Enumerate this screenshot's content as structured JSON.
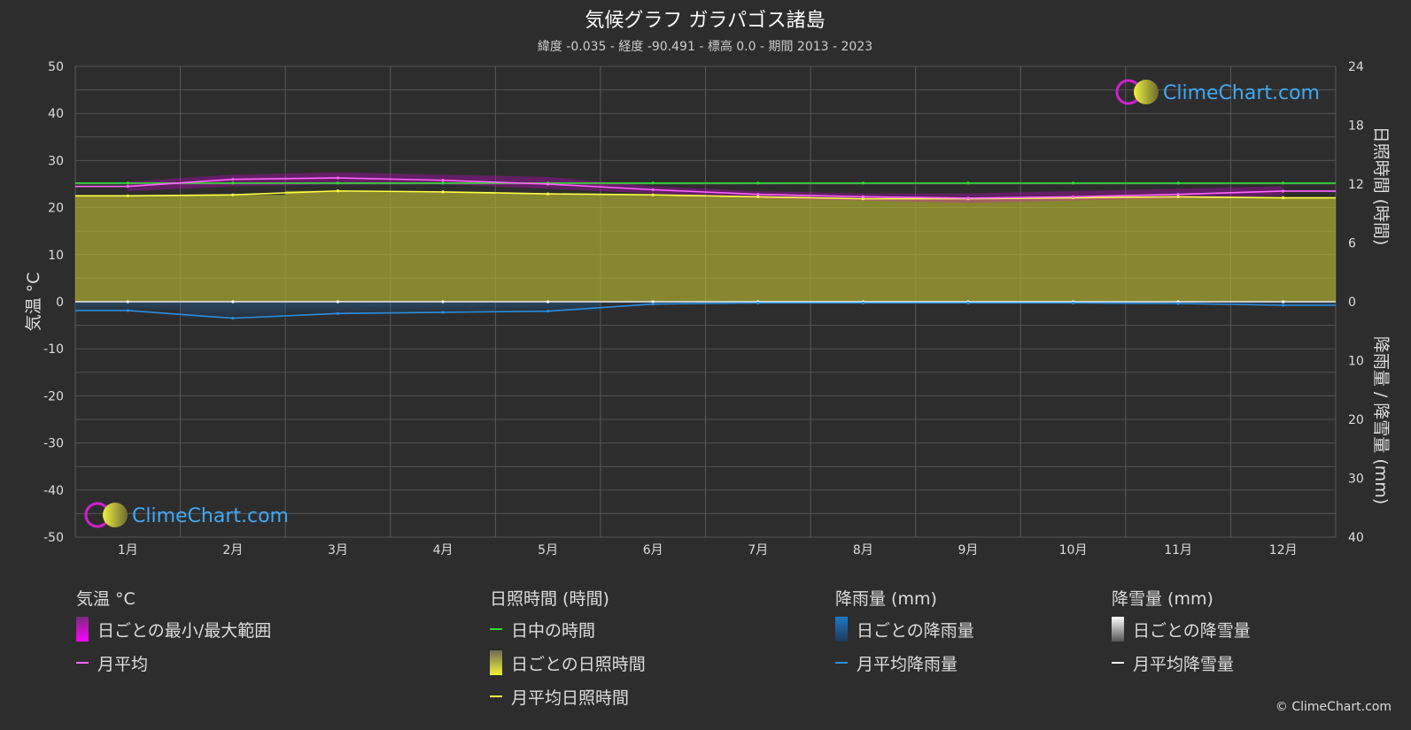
{
  "header": {
    "title": "気候グラフ ガラパゴス諸島",
    "subtitle": "緯度 -0.035 - 経度 -90.491 - 標高 0.0 - 期間 2013 - 2023"
  },
  "logo": {
    "text": "ClimeChart.com"
  },
  "copyright": "© ClimeChart.com",
  "colors": {
    "background": "#2d2d2d",
    "temp_range": "#e000e0",
    "temp_avg": "#ff66ff",
    "daylight": "#33dd33",
    "sunshine_fill": "#bfbf30",
    "sunshine_avg": "#ffff44",
    "rain_bar": "#1e78c8",
    "rain_avg": "#2a8fe0",
    "snow_avg": "#ffffff"
  },
  "chart_data": {
    "type": "line",
    "categories": [
      "1月",
      "2月",
      "3月",
      "4月",
      "5月",
      "6月",
      "7月",
      "8月",
      "9月",
      "10月",
      "11月",
      "12月"
    ],
    "axes": {
      "left": {
        "label": "気温 °C",
        "min": -50,
        "max": 50,
        "ticks": [
          50,
          40,
          30,
          20,
          10,
          0,
          -10,
          -20,
          -30,
          -40,
          -50
        ]
      },
      "right_top": {
        "label": "日照時間 (時間)",
        "min": 0,
        "max": 24,
        "ticks": [
          24,
          18,
          12,
          6,
          0
        ]
      },
      "right_bottom": {
        "label": "降雨量 / 降雪量 (mm)",
        "min": 0,
        "max": 40,
        "ticks": [
          10,
          20,
          30,
          40
        ]
      }
    },
    "grid": true,
    "series": [
      {
        "name": "日ごとの最小/最大範囲",
        "unit": "°C",
        "min": [
          23.5,
          24.5,
          25.0,
          25.0,
          24.0,
          23.0,
          22.0,
          21.5,
          21.0,
          21.5,
          22.0,
          22.5
        ],
        "max": [
          25.5,
          27.0,
          27.5,
          27.0,
          26.5,
          24.5,
          23.5,
          23.0,
          23.0,
          23.5,
          24.0,
          24.5
        ]
      },
      {
        "name": "月平均",
        "unit": "°C",
        "values": [
          24.5,
          26.0,
          26.3,
          25.8,
          25.0,
          23.8,
          22.8,
          22.3,
          22.0,
          22.3,
          22.8,
          23.5
        ]
      },
      {
        "name": "日中の時間",
        "unit": "時間",
        "values": [
          12.1,
          12.1,
          12.1,
          12.1,
          12.1,
          12.1,
          12.1,
          12.1,
          12.1,
          12.1,
          12.1,
          12.1
        ]
      },
      {
        "name": "月平均日照時間",
        "unit": "時間",
        "values": [
          10.8,
          10.9,
          11.3,
          11.2,
          11.0,
          10.9,
          10.7,
          10.5,
          10.5,
          10.6,
          10.7,
          10.6
        ]
      },
      {
        "name": "月平均降雨量",
        "unit": "mm",
        "values": [
          1.5,
          2.8,
          2.0,
          1.8,
          1.6,
          0.4,
          0.2,
          0.2,
          0.2,
          0.2,
          0.3,
          0.6
        ]
      },
      {
        "name": "月平均降雪量",
        "unit": "mm",
        "values": [
          0,
          0,
          0,
          0,
          0,
          0,
          0,
          0,
          0,
          0,
          0,
          0
        ]
      }
    ]
  },
  "legend": {
    "groups": [
      {
        "heading": "気温 °C",
        "items": [
          {
            "label": "日ごとの最小/最大範囲",
            "swatch": "box",
            "color": "#e000e0"
          },
          {
            "label": "月平均",
            "swatch": "line",
            "color": "#ff66ff"
          }
        ]
      },
      {
        "heading": "日照時間 (時間)",
        "items": [
          {
            "label": "日中の時間",
            "swatch": "line",
            "color": "#33dd33"
          },
          {
            "label": "日ごとの日照時間",
            "swatch": "box",
            "color": "#bfbf30"
          },
          {
            "label": "月平均日照時間",
            "swatch": "line",
            "color": "#ffff44"
          }
        ]
      },
      {
        "heading": "降雨量 (mm)",
        "items": [
          {
            "label": "日ごとの降雨量",
            "swatch": "box",
            "color": "#1e78c8"
          },
          {
            "label": "月平均降雨量",
            "swatch": "line",
            "color": "#2a8fe0"
          }
        ]
      },
      {
        "heading": "降雪量 (mm)",
        "items": [
          {
            "label": "日ごとの降雪量",
            "swatch": "box",
            "color": "#dddddd"
          },
          {
            "label": "月平均降雪量",
            "swatch": "line",
            "color": "#ffffff"
          }
        ]
      }
    ]
  }
}
